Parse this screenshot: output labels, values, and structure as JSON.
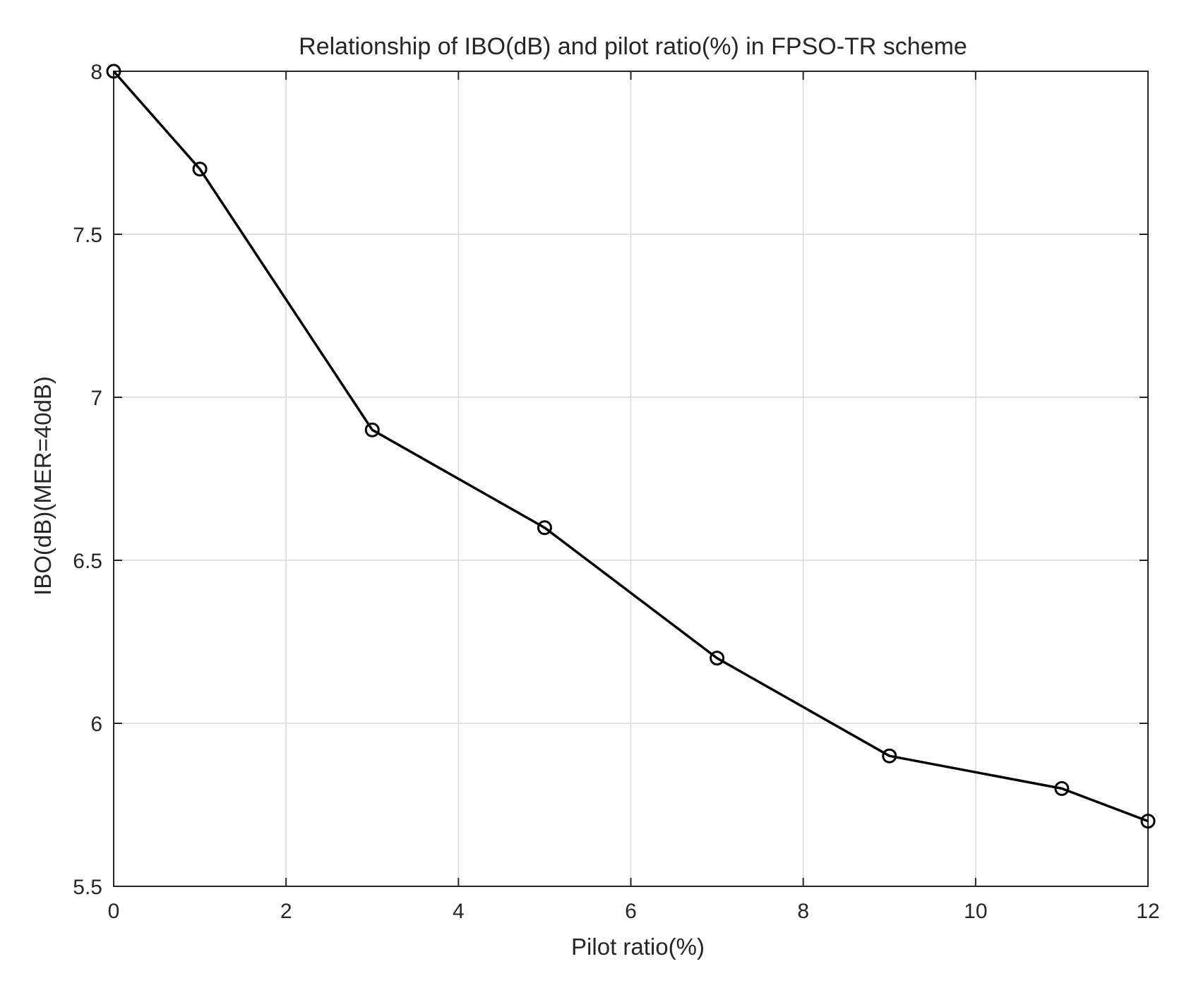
{
  "chart_data": {
    "type": "line",
    "title": "Relationship of IBO(dB) and pilot ratio(%) in FPSO-TR scheme",
    "xlabel": "Pilot ratio(%)",
    "ylabel": "IBO(dB)(MER=40dB)",
    "xlim": [
      0,
      12
    ],
    "ylim": [
      5.5,
      8
    ],
    "xticks": [
      "0",
      "2",
      "4",
      "6",
      "8",
      "10",
      "12"
    ],
    "yticks": [
      "5.5",
      "6",
      "6.5",
      "7",
      "7.5",
      "8"
    ],
    "grid": true,
    "series": [
      {
        "x": [
          0,
          1,
          3,
          5,
          7,
          9,
          11,
          12
        ],
        "y": [
          8.0,
          7.7,
          6.9,
          6.6,
          6.2,
          5.9,
          5.8,
          5.7
        ],
        "color": "#000000",
        "marker": "circle"
      }
    ]
  }
}
